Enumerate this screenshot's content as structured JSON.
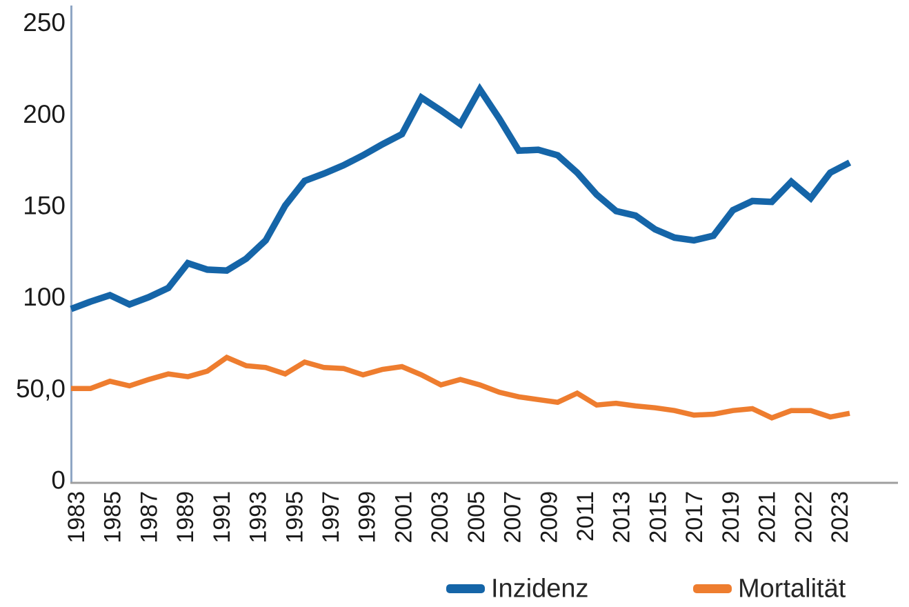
{
  "chart_data": {
    "type": "line",
    "title": "",
    "xlabel": "",
    "ylabel": "",
    "ylim": [
      0,
      250
    ],
    "grid": false,
    "legend_position": "bottom",
    "x": [
      1983,
      1984,
      1985,
      1986,
      1987,
      1988,
      1989,
      1990,
      1991,
      1992,
      1993,
      1994,
      1995,
      1996,
      1997,
      1998,
      1999,
      2000,
      2001,
      2002,
      2003,
      2004,
      2005,
      2006,
      2007,
      2008,
      2009,
      2010,
      2011,
      2012,
      2013,
      2014,
      2015,
      2016,
      2017,
      2018,
      2019,
      2020,
      2021,
      2022,
      2023
    ],
    "series": [
      {
        "name": "Inzidenz",
        "color": "#1565a8",
        "values": [
          93.5,
          97.5,
          101,
          96,
          100,
          105,
          118.5,
          115,
          114.5,
          121,
          131,
          150,
          163.5,
          167.5,
          172,
          177.5,
          183.5,
          189,
          209,
          202,
          194.5,
          213.5,
          197.5,
          180,
          180.5,
          177.5,
          168,
          156,
          147,
          144.5,
          137,
          132.5,
          131,
          133.5,
          147.5,
          152.5,
          152,
          163,
          154,
          168,
          173.5
        ]
      },
      {
        "name": "Mortalität",
        "color": "#ee7d2f",
        "values": [
          50,
          50,
          54,
          51.5,
          55,
          58,
          56.5,
          59.5,
          67,
          62.5,
          61.5,
          58,
          64.5,
          61.5,
          61,
          57.5,
          60.5,
          62,
          57.5,
          52,
          55,
          52,
          48,
          45.5,
          44,
          42.5,
          47.5,
          41,
          42,
          40.5,
          39.5,
          38,
          35.5,
          36,
          38,
          39,
          34,
          38,
          38,
          34.5,
          36.5
        ]
      }
    ],
    "y_tick_labels": [
      "250",
      "200",
      "150",
      "100",
      "50,0",
      "0"
    ],
    "y_tick_values": [
      250,
      200,
      150,
      100,
      50,
      0
    ],
    "x_tick_labels": [
      "1983",
      "1985",
      "1987",
      "1989",
      "1991",
      "1993",
      "1995",
      "1997",
      "1999",
      "2001",
      "2003",
      "2005",
      "2007",
      "2009",
      "2011",
      "2013",
      "2015",
      "2017",
      "2019",
      "2021",
      "2022",
      "2023"
    ]
  },
  "legend": {
    "items": [
      {
        "label": "Inzidenz",
        "color": "#1565a8"
      },
      {
        "label": "Mortalität",
        "color": "#ee7d2f"
      }
    ]
  },
  "style": {
    "y_axis_color": "#8fa6c4",
    "x_axis_color": "#9e9e9e",
    "text_color": "#1a1a1a",
    "incidence_stroke_width": 9.5,
    "mortality_stroke_width": 7.5
  }
}
